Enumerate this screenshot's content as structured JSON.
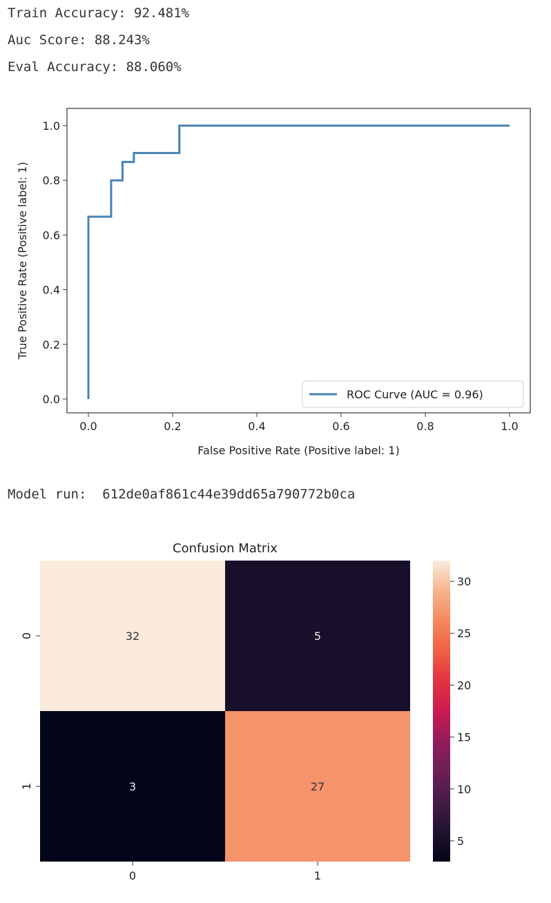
{
  "metrics": [
    {
      "label": "Train Accuracy:",
      "value": "92.481%"
    },
    {
      "label": "Auc Score:",
      "value": "88.243%"
    },
    {
      "label": "Eval Accuracy:",
      "value": "88.060%"
    }
  ],
  "model_run": {
    "label": "Model run: ",
    "value": "612de0af861c44e39dd65a790772b0ca"
  },
  "chart_data": [
    {
      "type": "line",
      "title": "",
      "xlabel": "False Positive Rate (Positive label: 1)",
      "ylabel": "True Positive Rate (Positive label: 1)",
      "xlim": [
        -0.05,
        1.05
      ],
      "ylim": [
        -0.05,
        1.05
      ],
      "xticks": [
        "0.0",
        "0.2",
        "0.4",
        "0.6",
        "0.8",
        "1.0"
      ],
      "yticks": [
        "0.0",
        "0.2",
        "0.4",
        "0.6",
        "0.8",
        "1.0"
      ],
      "legend": {
        "position": "bottom-right",
        "entries": [
          "ROC Curve (AUC = 0.96)"
        ]
      },
      "series": [
        {
          "name": "ROC Curve (AUC = 0.96)",
          "color": "#4682b4",
          "x": [
            0,
            0,
            0.054,
            0.054,
            0.081,
            0.081,
            0.108,
            0.108,
            0.216,
            0.216,
            1.0
          ],
          "y": [
            0,
            0.667,
            0.667,
            0.8,
            0.8,
            0.867,
            0.867,
            0.9,
            0.9,
            1.0,
            1.0
          ]
        }
      ]
    },
    {
      "type": "heatmap",
      "title": "Confusion Matrix",
      "row_labels": [
        "0",
        "1"
      ],
      "col_labels": [
        "0",
        "1"
      ],
      "values": [
        [
          32,
          5
        ],
        [
          3,
          27
        ]
      ],
      "colorbar": {
        "min": 3,
        "max": 32,
        "ticks": [
          "5",
          "10",
          "15",
          "20",
          "25",
          "30"
        ]
      }
    }
  ]
}
